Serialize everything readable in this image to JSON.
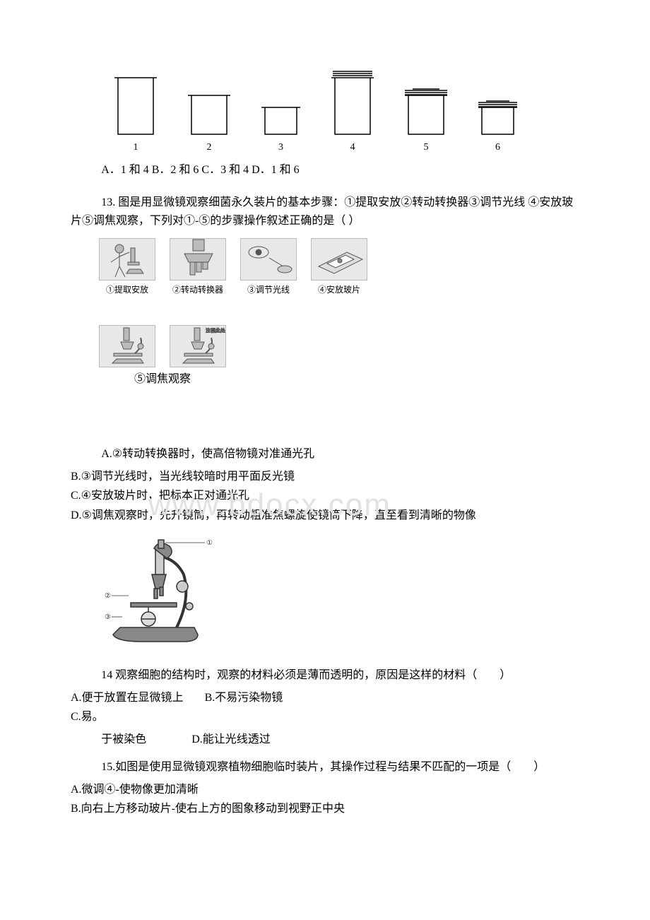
{
  "beakers": {
    "items": [
      {
        "label": "1",
        "outer_w": 50,
        "outer_h": 80,
        "lid": "none"
      },
      {
        "label": "2",
        "outer_w": 50,
        "outer_h": 55,
        "lid": "none"
      },
      {
        "label": "3",
        "outer_w": 45,
        "outer_h": 38,
        "lid": "none"
      },
      {
        "label": "4",
        "outer_w": 50,
        "outer_h": 80,
        "lid": "open"
      },
      {
        "label": "5",
        "outer_w": 50,
        "outer_h": 55,
        "lid": "closed"
      },
      {
        "label": "6",
        "outer_w": 45,
        "outer_h": 38,
        "lid": "closed"
      }
    ],
    "stroke": "#000000",
    "fill": "#ffffff"
  },
  "q12_answers": "A．1 和 4 B．2 和 6 C．3 和 4 D．1 和 6",
  "q13": {
    "stem": "13. 图是用显微镜观察细菌永久装片的基本步骤：①提取安放②转动转换器③调节光线 ④安放玻片⑤调焦观察，下列对①-⑤的步骤操作叙述正确的是（ ）",
    "steps": [
      "①提取安放",
      "②转动转换器",
      "③调节光线",
      "④安放玻片",
      "⑤调焦观察"
    ],
    "optA": "A.②转动转换器时，使高倍物镜对准通光孔",
    "optB": "B.③调节光线时，当光线较暗时用平面反光镜",
    "optC": "C.④安放玻片时，把标本正对通光孔",
    "optD": "D.⑤调焦观察时，先升镜筒，再转动粗准焦螺旋使镜筒下降，直至看到清晰的物像"
  },
  "watermark_text": "www.bdocx.com",
  "q14": {
    "stem_line1": "14 观察细胞的结构时，观察的材料必须是薄而透明的，原因是这样的材料（　　）",
    "optA": "A.便于放置在显微镜上",
    "optB": "B.不易污染物镜",
    "optC_prefix": "C.易。",
    "optC_cont": "于被染色",
    "optD": "D.能让光线透过"
  },
  "q15": {
    "stem": "15.如图是使用显微镜观察植物细胞临时装片，其操作过程与结果不匹配的一项是（　　）",
    "optA": "A.微调④-使物像更加清晰",
    "optB": "B.向右上方移动玻片-使右上方的图象移动到视野正中央"
  },
  "microscope": {
    "stroke": "#333333",
    "fill": "#9a9a9a"
  }
}
